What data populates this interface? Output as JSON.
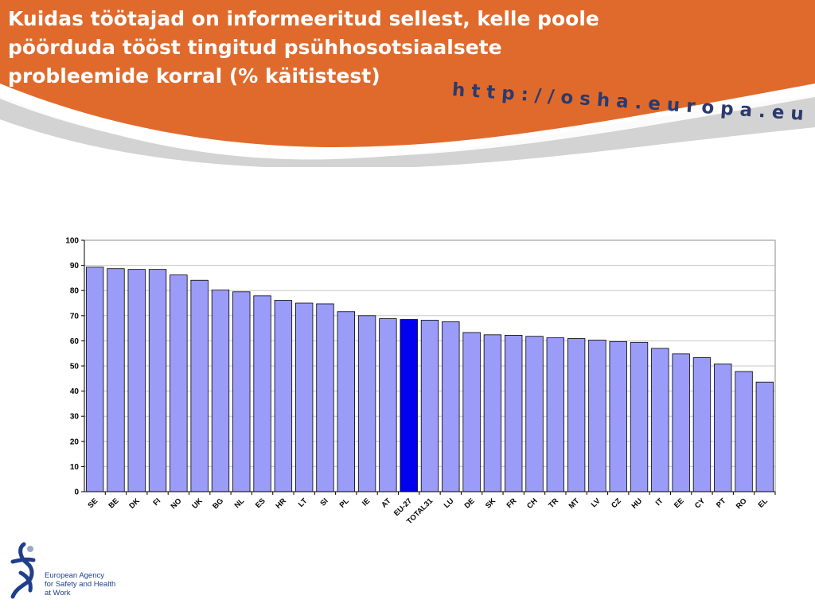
{
  "slide": {
    "title": "Kuidas töötajad on informeeritud sellest, kelle poole\npöörduda tööst tingitud psühhosotsiaalsete\nprobleemide korral (% käitistest)",
    "url": "http://osha.europa.eu"
  },
  "logo": {
    "lines": [
      "European Agency",
      "for Safety and Health",
      "at Work"
    ]
  },
  "colors": {
    "header": "#e06a2c",
    "bar": "#9a9cf8",
    "highlight_bar": "#0000ee",
    "url_text": "#2a3a6e"
  },
  "chart_data": {
    "type": "bar",
    "title": "",
    "xlabel": "",
    "ylabel": "",
    "ylim": [
      0,
      100
    ],
    "yticks": [
      0,
      10,
      20,
      30,
      40,
      50,
      60,
      70,
      80,
      90,
      100
    ],
    "grid": true,
    "legend": "none",
    "categories": [
      "SE",
      "BE",
      "DK",
      "FI",
      "NO",
      "UK",
      "BG",
      "NL",
      "ES",
      "HR",
      "LT",
      "SI",
      "PL",
      "IE",
      "AT",
      "EU-27",
      "TOTAL31",
      "LU",
      "DE",
      "SK",
      "FR",
      "CH",
      "TR",
      "MT",
      "LV",
      "CZ",
      "HU",
      "IT",
      "EE",
      "CY",
      "PT",
      "RO",
      "EL"
    ],
    "values": [
      89.3,
      88.7,
      88.4,
      88.4,
      86.2,
      84.1,
      80.2,
      79.5,
      77.9,
      76.1,
      75.0,
      74.7,
      71.6,
      70.0,
      68.8,
      68.5,
      68.2,
      67.6,
      63.3,
      62.4,
      62.2,
      61.8,
      61.2,
      60.9,
      60.3,
      59.7,
      59.4,
      57.0,
      54.8,
      53.3,
      50.8,
      47.8,
      43.6
    ],
    "highlight": "EU-27"
  }
}
